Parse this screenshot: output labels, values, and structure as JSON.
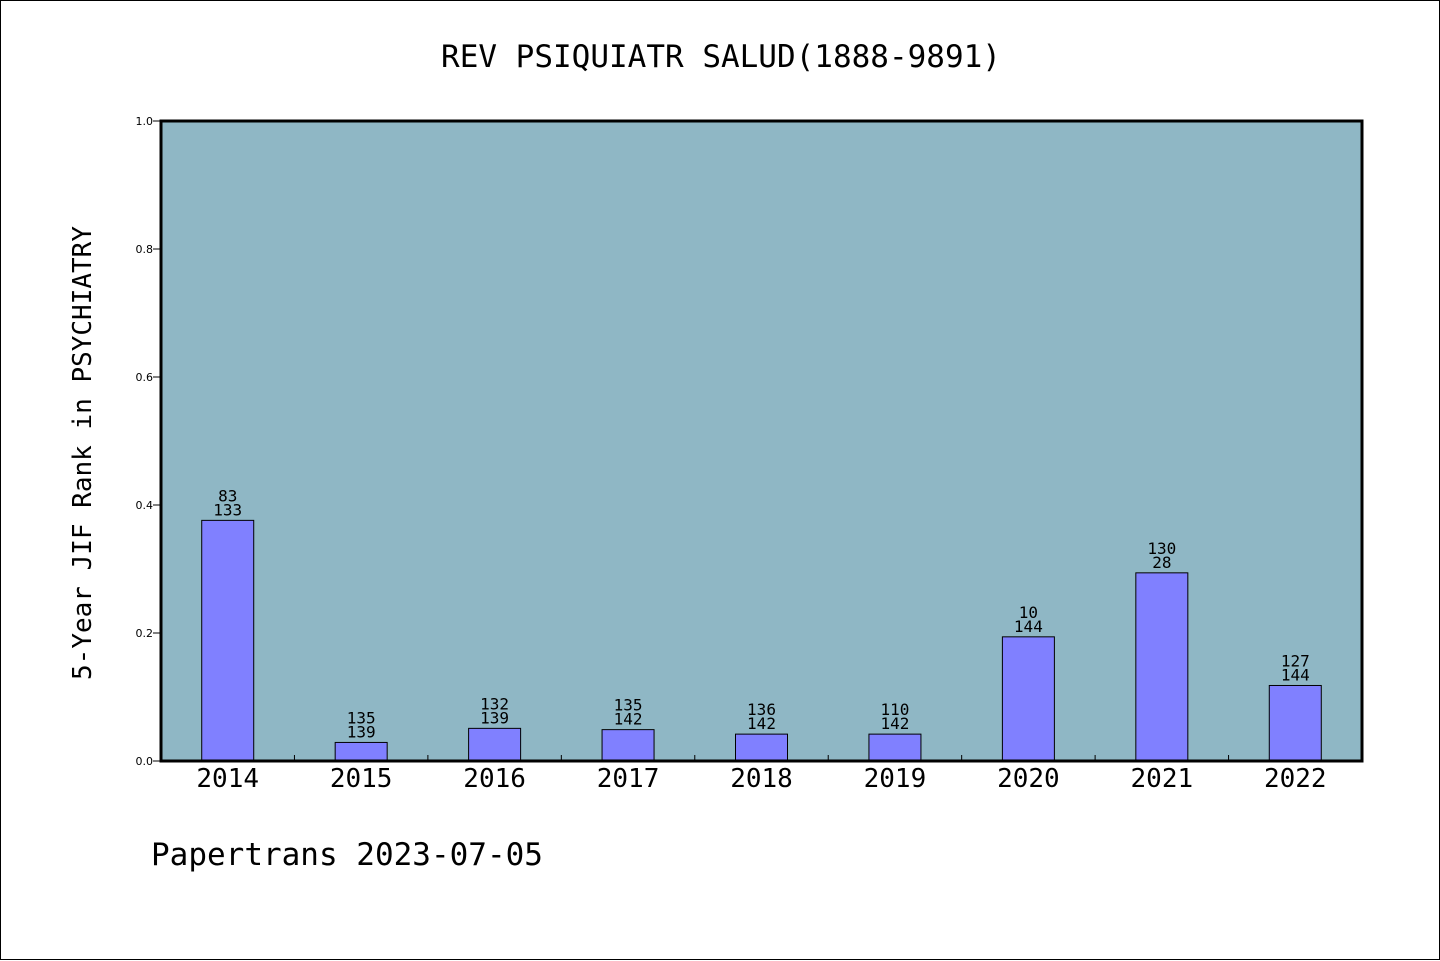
{
  "chart_data": {
    "type": "bar",
    "title": "REV PSIQUIATR SALUD(1888-9891)",
    "ylabel": "5-Year JIF Rank in PSYCHIATRY",
    "xlabel": "",
    "footer": "Papertrans 2023-07-05",
    "ylim": [
      0,
      1.0
    ],
    "yticks": [
      "0.0",
      "0.2",
      "0.4",
      "0.6",
      "0.8",
      "1.0"
    ],
    "categories": [
      "2014",
      "2015",
      "2016",
      "2017",
      "2018",
      "2019",
      "2020",
      "2021",
      "2022"
    ],
    "values": [
      0.376,
      0.029,
      0.051,
      0.049,
      0.042,
      0.042,
      0.194,
      0.294,
      0.118
    ],
    "labels_top": [
      "83",
      "135",
      "132",
      "135",
      "136",
      "110",
      "10",
      "130",
      "127"
    ],
    "labels_bottom": [
      "133",
      "139",
      "139",
      "142",
      "142",
      "142",
      "144",
      "28",
      "144"
    ],
    "grid": false,
    "colors": {
      "plot_background": "#8fb7c5",
      "bar_fill": "#8080ff",
      "bar_stroke": "#000000"
    }
  }
}
